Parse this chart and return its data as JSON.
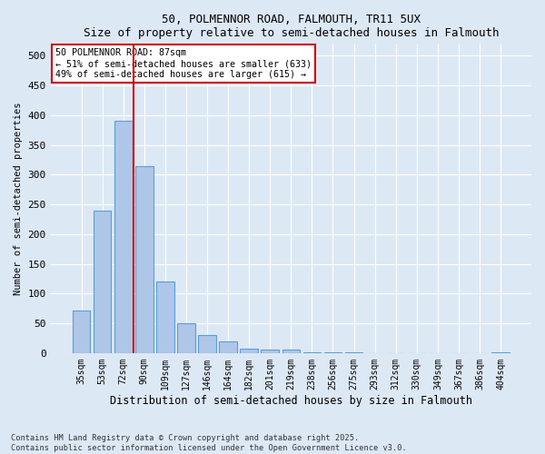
{
  "title1": "50, POLMENNOR ROAD, FALMOUTH, TR11 5UX",
  "title2": "Size of property relative to semi-detached houses in Falmouth",
  "xlabel": "Distribution of semi-detached houses by size in Falmouth",
  "ylabel": "Number of semi-detached properties",
  "categories": [
    "35sqm",
    "53sqm",
    "72sqm",
    "90sqm",
    "109sqm",
    "127sqm",
    "146sqm",
    "164sqm",
    "182sqm",
    "201sqm",
    "219sqm",
    "238sqm",
    "256sqm",
    "275sqm",
    "293sqm",
    "312sqm",
    "330sqm",
    "349sqm",
    "367sqm",
    "386sqm",
    "404sqm"
  ],
  "values": [
    72,
    240,
    390,
    315,
    120,
    50,
    30,
    20,
    7,
    6,
    6,
    2,
    2,
    2,
    0,
    0,
    0,
    0,
    0,
    0,
    2
  ],
  "bar_color": "#aec6e8",
  "bar_edge_color": "#5a9fd4",
  "vline_color": "#cc0000",
  "vline_x_index": 2,
  "annotation_text": "50 POLMENNOR ROAD: 87sqm\n← 51% of semi-detached houses are smaller (633)\n49% of semi-detached houses are larger (615) →",
  "annotation_box_color": "#ffffff",
  "annotation_box_edge": "#cc0000",
  "ylim": [
    0,
    520
  ],
  "yticks": [
    0,
    50,
    100,
    150,
    200,
    250,
    300,
    350,
    400,
    450,
    500
  ],
  "footer": "Contains HM Land Registry data © Crown copyright and database right 2025.\nContains public sector information licensed under the Open Government Licence v3.0.",
  "bg_color": "#dde8f5",
  "plot_bg_color": "#dde8f5"
}
